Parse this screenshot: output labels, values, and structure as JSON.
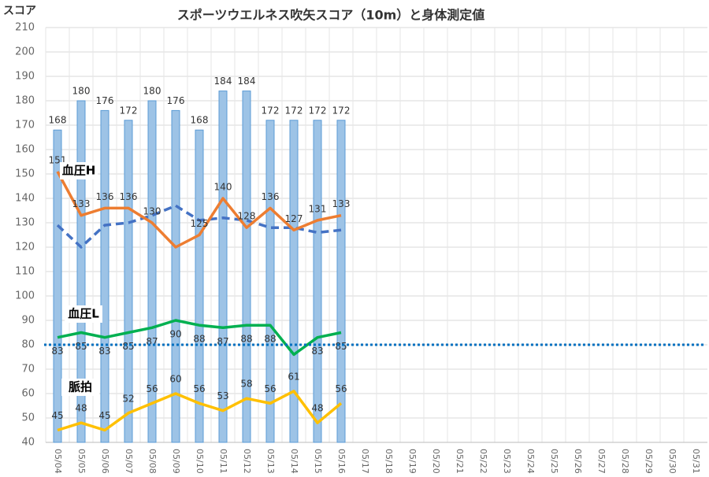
{
  "chart_data": {
    "type": "combo",
    "title": "スポーツウエルネス吹矢スコア（10m）と身体測定値",
    "y_label": "スコア",
    "categories": [
      "05/04",
      "05/05",
      "05/06",
      "05/07",
      "05/08",
      "05/09",
      "05/10",
      "05/11",
      "05/12",
      "05/13",
      "05/14",
      "05/15",
      "05/16",
      "05/17",
      "05/18",
      "05/19",
      "05/20",
      "05/21",
      "05/22",
      "05/23",
      "05/24",
      "05/25",
      "05/26",
      "05/27",
      "05/28",
      "05/29",
      "05/30",
      "05/31"
    ],
    "ylim": [
      40,
      210
    ],
    "yticks": [
      40,
      50,
      60,
      70,
      80,
      90,
      100,
      110,
      120,
      130,
      140,
      150,
      160,
      170,
      180,
      190,
      200,
      210
    ],
    "grid": true,
    "reference_line": {
      "value": 80,
      "color": "#0070c0"
    },
    "series": [
      {
        "type": "bar",
        "color": "#9dc3e6",
        "values": [
          168,
          180,
          176,
          172,
          180,
          176,
          168,
          184,
          184,
          172,
          172,
          172,
          172,
          null,
          null,
          null,
          null,
          null,
          null,
          null,
          null,
          null,
          null,
          null,
          null,
          null,
          null,
          null
        ]
      },
      {
        "type": "line",
        "dashed": true,
        "color": "#4472c4",
        "values": [
          129,
          120,
          129,
          130,
          133,
          137,
          131,
          132,
          131,
          128,
          128,
          126,
          127,
          null,
          null,
          null,
          null,
          null,
          null,
          null,
          null,
          null,
          null,
          null,
          null,
          null,
          null,
          null
        ]
      },
      {
        "type": "line",
        "name": "血圧H",
        "color": "#ed7d31",
        "values": [
          151,
          133,
          136,
          136,
          130,
          120,
          125,
          140,
          128,
          136,
          127,
          131,
          133,
          null,
          null,
          null,
          null,
          null,
          null,
          null,
          null,
          null,
          null,
          null,
          null,
          null,
          null,
          null
        ],
        "value_labels": [
          "151",
          "133",
          "136",
          "136",
          "130",
          null,
          "125",
          "140",
          "128",
          "136",
          "127",
          "131",
          "133",
          null,
          null,
          null,
          null,
          null,
          null,
          null,
          null,
          null,
          null,
          null,
          null,
          null,
          null,
          null
        ]
      },
      {
        "type": "line",
        "name": "血圧L",
        "color": "#00b050",
        "values": [
          83,
          85,
          83,
          85,
          87,
          90,
          88,
          87,
          88,
          88,
          76,
          83,
          85,
          null,
          null,
          null,
          null,
          null,
          null,
          null,
          null,
          null,
          null,
          null,
          null,
          null,
          null,
          null
        ],
        "value_labels": [
          "83",
          "85",
          "83",
          "85",
          "87",
          "90",
          "88",
          "87",
          "88",
          "88",
          null,
          "83",
          "85",
          null,
          null,
          null,
          null,
          null,
          null,
          null,
          null,
          null,
          null,
          null,
          null,
          null,
          null,
          null
        ]
      },
      {
        "type": "line",
        "name": "脈拍",
        "color": "#ffc000",
        "values": [
          45,
          48,
          45,
          52,
          56,
          60,
          56,
          53,
          58,
          56,
          61,
          48,
          56,
          null,
          null,
          null,
          null,
          null,
          null,
          null,
          null,
          null,
          null,
          null,
          null,
          null,
          null,
          null
        ],
        "value_labels": [
          "45",
          "48",
          "45",
          "52",
          "56",
          "60",
          "56",
          "53",
          "58",
          "56",
          "61",
          "48",
          "56",
          null,
          null,
          null,
          null,
          null,
          null,
          null,
          null,
          null,
          null,
          null,
          null,
          null,
          null,
          null
        ]
      }
    ]
  }
}
